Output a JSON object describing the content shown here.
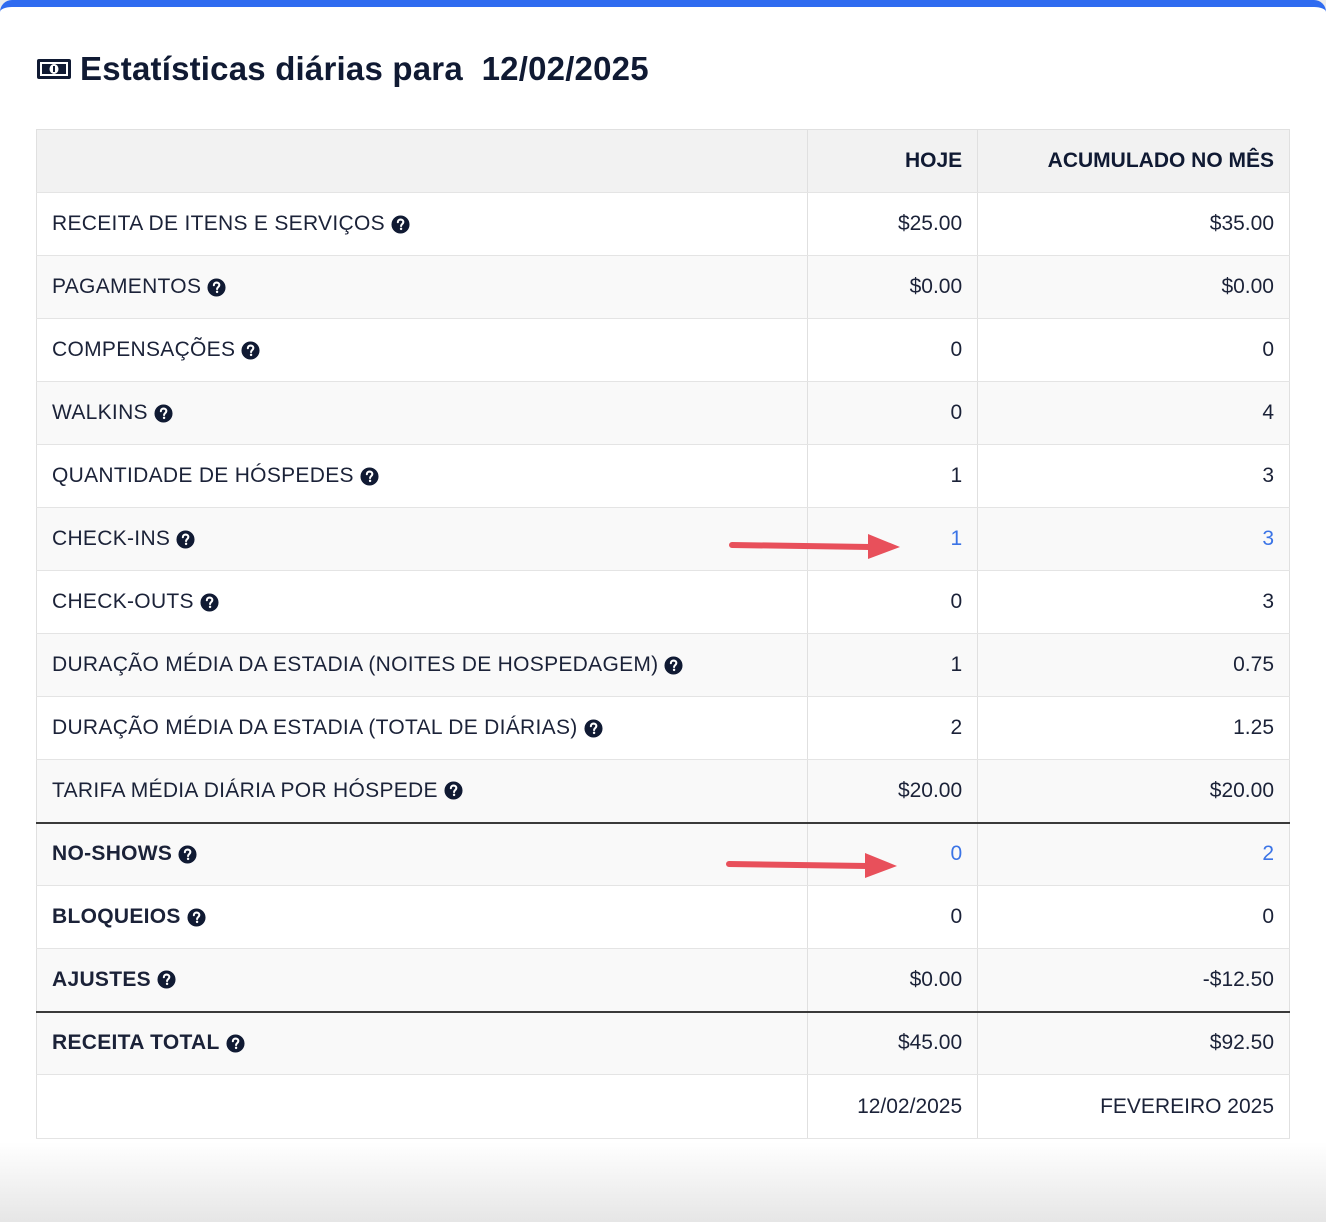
{
  "title": "Estatísticas diárias para  12/02/2025",
  "icons": {
    "title": "money-bill-icon",
    "help": "question-circle-icon",
    "annotation": "red-arrow"
  },
  "colors": {
    "accent": "#2f6bf0",
    "link": "#3b74e6",
    "arrow": "#e8505b"
  },
  "columns": {
    "today": "HOJE",
    "month": "ACUMULADO NO MÊS"
  },
  "rows": [
    {
      "label": "RECEITA DE ITENS E SERVIÇOS",
      "today": "$25.00",
      "month": "$35.00"
    },
    {
      "label": "PAGAMENTOS",
      "today": "$0.00",
      "month": "$0.00"
    },
    {
      "label": "COMPENSAÇÕES",
      "today": "0",
      "month": "0"
    },
    {
      "label": "WALKINS",
      "today": "0",
      "month": "4"
    },
    {
      "label": "QUANTIDADE DE HÓSPEDES",
      "today": "1",
      "month": "3"
    },
    {
      "label": "CHECK-INS",
      "today": "1",
      "month": "3"
    },
    {
      "label": "CHECK-OUTS",
      "today": "0",
      "month": "3"
    },
    {
      "label": "DURAÇÃO MÉDIA DA ESTADIA (NOITES DE HOSPEDAGEM)",
      "today": "1",
      "month": "0.75"
    },
    {
      "label": "DURAÇÃO MÉDIA DA ESTADIA (TOTAL DE DIÁRIAS)",
      "today": "2",
      "month": "1.25"
    },
    {
      "label": "TARIFA MÉDIA DIÁRIA POR HÓSPEDE",
      "today": "$20.00",
      "month": "$20.00"
    },
    {
      "label": "NO-SHOWS",
      "today": "0",
      "month": "2"
    },
    {
      "label": "BLOQUEIOS",
      "today": "0",
      "month": "0"
    },
    {
      "label": "AJUSTES",
      "today": "$0.00",
      "month": "-$12.50"
    },
    {
      "label": "RECEITA TOTAL",
      "today": "$45.00",
      "month": "$92.50"
    }
  ],
  "footer": {
    "today": "12/02/2025",
    "month": "FEVEREIRO 2025"
  }
}
